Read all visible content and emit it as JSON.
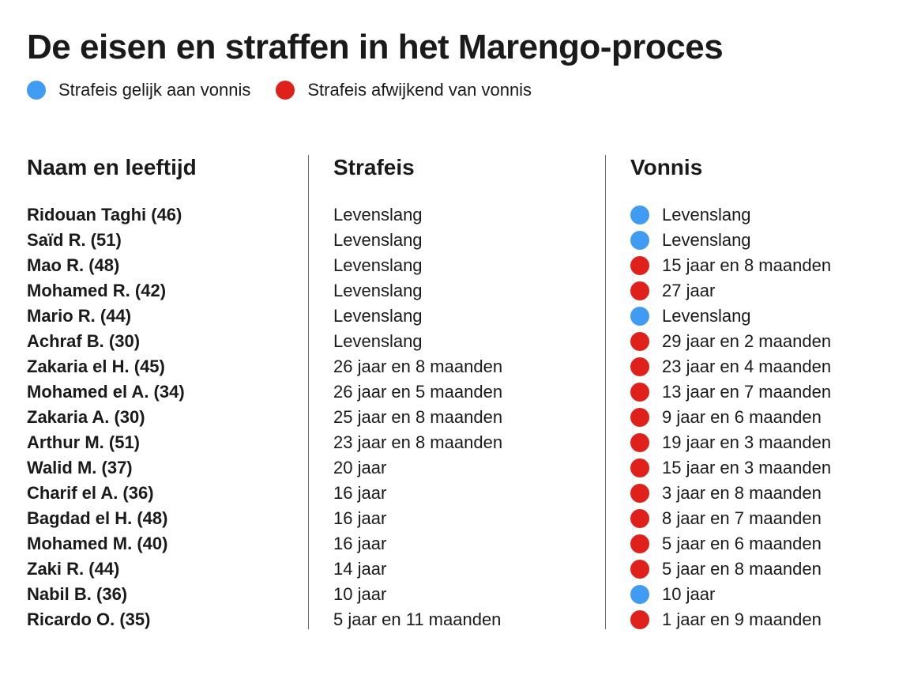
{
  "title": "De eisen en straffen in het Marengo-proces",
  "legend": [
    {
      "label": "Strafeis gelijk aan vonnis",
      "color": "#3f9cf2"
    },
    {
      "label": "Strafeis afwijkend van vonnis",
      "color": "#e0201b"
    }
  ],
  "columns": {
    "name": "Naam en leeftijd",
    "demand": "Strafeis",
    "verdict": "Vonnis"
  },
  "chart_data": {
    "type": "table",
    "title": "De eisen en straffen in het Marengo-proces",
    "columns": [
      "Naam en leeftijd",
      "Strafeis",
      "Vonnis"
    ],
    "rows": [
      {
        "name": "Ridouan Taghi (46)",
        "demand": "Levenslang",
        "verdict": "Levenslang",
        "equal": true
      },
      {
        "name": "Saïd R. (51)",
        "demand": "Levenslang",
        "verdict": "Levenslang",
        "equal": true
      },
      {
        "name": "Mao R. (48)",
        "demand": "Levenslang",
        "verdict": "15 jaar en 8 maanden",
        "equal": false
      },
      {
        "name": "Mohamed R. (42)",
        "demand": "Levenslang",
        "verdict": "27 jaar",
        "equal": false
      },
      {
        "name": "Mario R. (44)",
        "demand": "Levenslang",
        "verdict": "Levenslang",
        "equal": true
      },
      {
        "name": "Achraf B. (30)",
        "demand": "Levenslang",
        "verdict": "29 jaar en 2 maanden",
        "equal": false
      },
      {
        "name": "Zakaria el H. (45)",
        "demand": "26 jaar en 8 maanden",
        "verdict": "23 jaar en 4 maanden",
        "equal": false
      },
      {
        "name": "Mohamed el A. (34)",
        "demand": "26 jaar en 5 maanden",
        "verdict": "13 jaar en 7 maanden",
        "equal": false
      },
      {
        "name": "Zakaria A. (30)",
        "demand": "25 jaar en 8 maanden",
        "verdict": "9 jaar en 6 maanden",
        "equal": false
      },
      {
        "name": "Arthur M. (51)",
        "demand": "23 jaar en 8 maanden",
        "verdict": "19 jaar en 3 maanden",
        "equal": false
      },
      {
        "name": "Walid M. (37)",
        "demand": "20 jaar",
        "verdict": "15 jaar en 3 maanden",
        "equal": false
      },
      {
        "name": "Charif el A. (36)",
        "demand": "16 jaar",
        "verdict": "3 jaar en 8 maanden",
        "equal": false
      },
      {
        "name": "Bagdad el H. (48)",
        "demand": "16 jaar",
        "verdict": "8 jaar en 7 maanden",
        "equal": false
      },
      {
        "name": "Mohamed M. (40)",
        "demand": "16 jaar",
        "verdict": "5 jaar en 6 maanden",
        "equal": false
      },
      {
        "name": "Zaki R. (44)",
        "demand": "14 jaar",
        "verdict": "5 jaar en 8 maanden",
        "equal": false
      },
      {
        "name": "Nabil B. (36)",
        "demand": "10 jaar",
        "verdict": "10 jaar",
        "equal": true
      },
      {
        "name": "Ricardo O. (35)",
        "demand": "5 jaar en 11 maanden",
        "verdict": "1 jaar en 9 maanden",
        "equal": false
      }
    ]
  }
}
